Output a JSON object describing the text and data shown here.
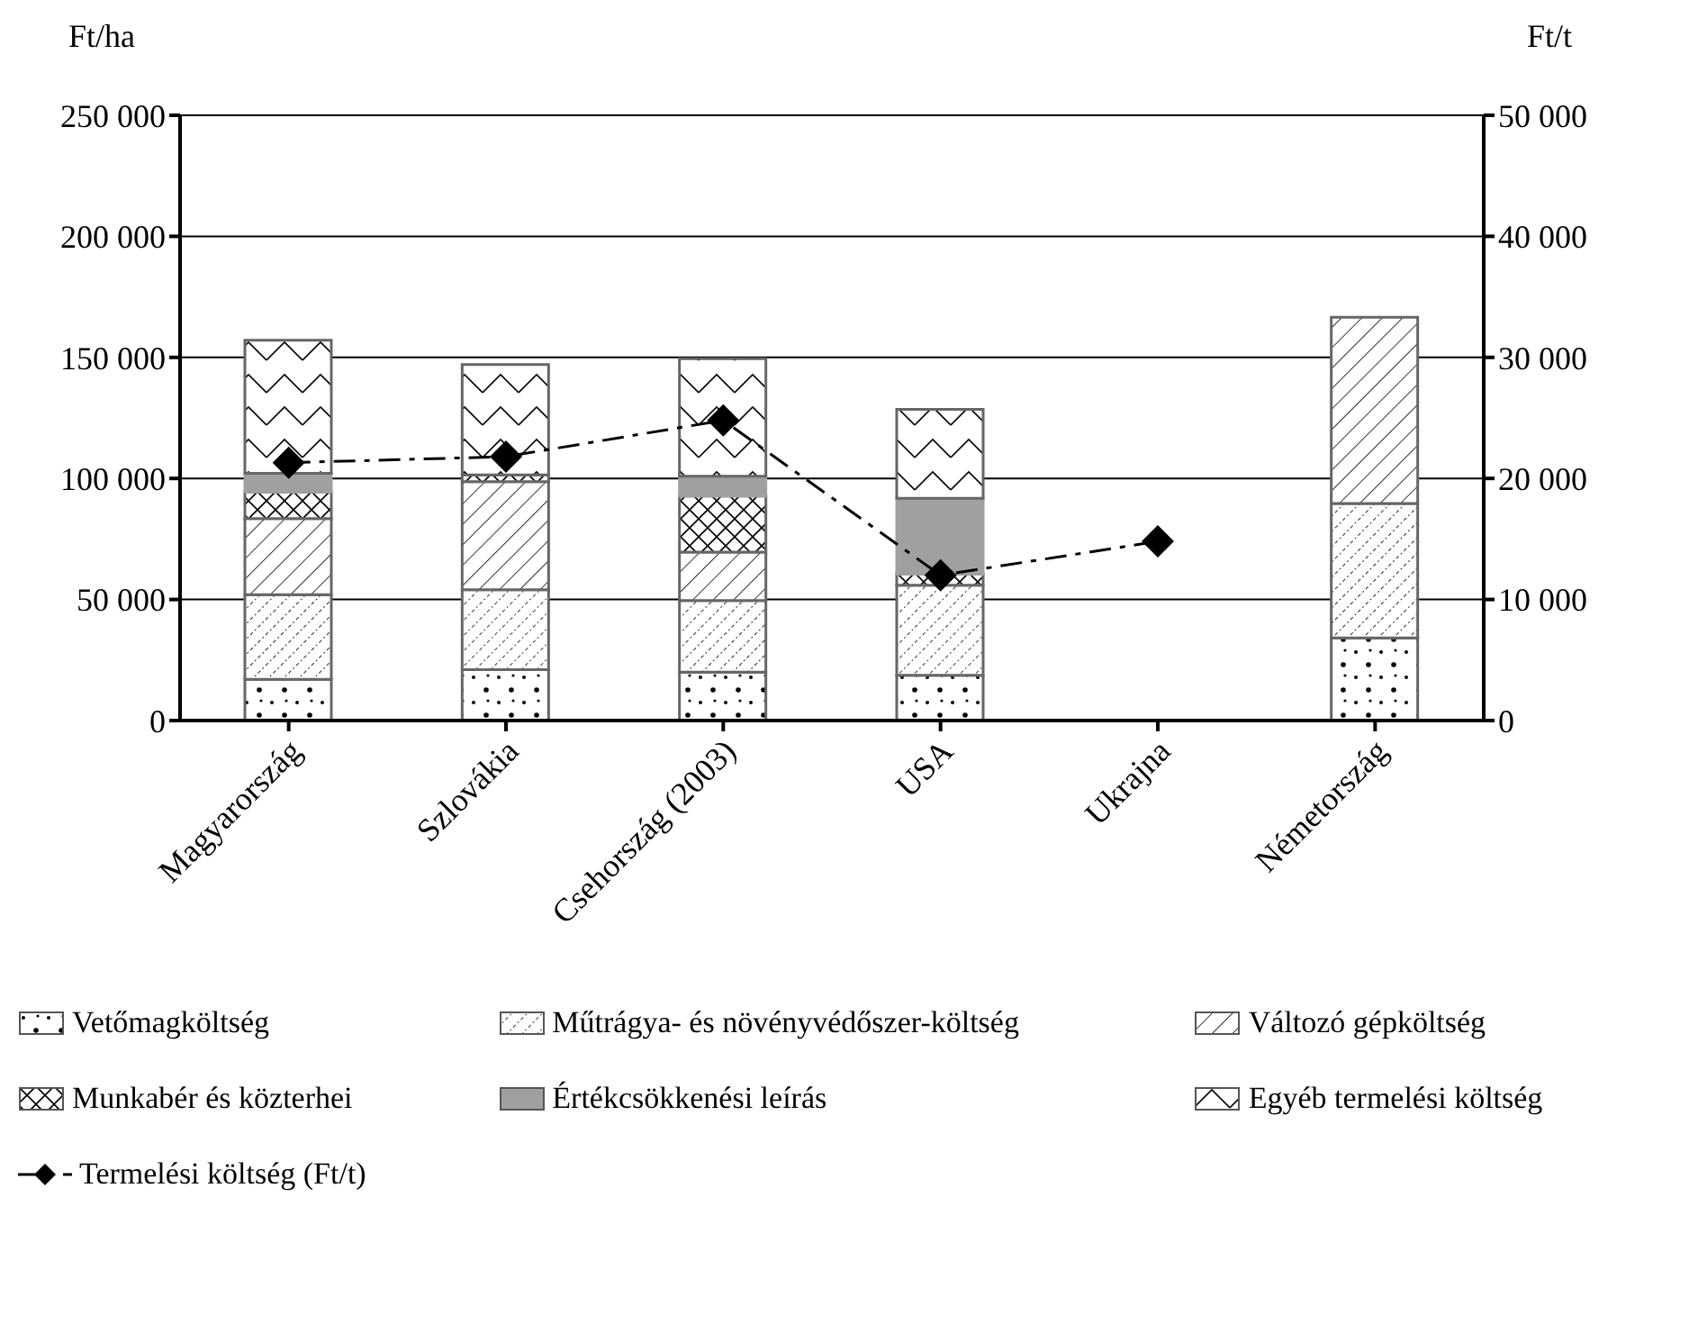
{
  "chart_data": {
    "type": "bar",
    "stacked": true,
    "ylabel": "Ft/ha",
    "y2label": "Ft/t",
    "categories": [
      "Magyarország",
      "Szlovákia",
      "Csehország (2003)",
      "USA",
      "Ukrajna",
      "Németország"
    ],
    "series": [
      {
        "name": "Vetőmagköltség",
        "color": "#666666",
        "values": [
          17000,
          21000,
          20000,
          18700,
          null,
          34100
        ]
      },
      {
        "name": "Műtrágya- és növényvédőszer-költség",
        "color": "#666666",
        "values": [
          35000,
          33000,
          29600,
          37200,
          null,
          55600
        ]
      },
      {
        "name": "Változó gépköltség",
        "color": "#666666",
        "values": [
          31400,
          44700,
          20000,
          null,
          null,
          76900
        ]
      },
      {
        "name": "Munkabér és közterhei",
        "color": "#666666",
        "values": [
          11000,
          2800,
          23100,
          4600,
          null,
          null
        ]
      },
      {
        "name": "Értékcsökkenési leírás",
        "color": "#a0a0a0",
        "values": [
          7700,
          null,
          8200,
          31300,
          null,
          null
        ]
      },
      {
        "name": "Egyéb termelési költség",
        "color": "#666666",
        "values": [
          55000,
          45500,
          48600,
          36700,
          null,
          null
        ]
      },
      {
        "name": "Termelési költség (Ft/t)",
        "type": "line",
        "axis": "y2",
        "color": "#000000",
        "marker": "diamond",
        "line_style": "dashed",
        "values": [
          21300,
          21800,
          24800,
          12000,
          14800,
          null
        ]
      }
    ],
    "ylim": [
      0,
      250000
    ],
    "yticks": [
      {
        "value": 0,
        "label": "0"
      },
      {
        "value": 50000,
        "label": "50 000"
      },
      {
        "value": 100000,
        "label": "100 000"
      },
      {
        "value": 150000,
        "label": "150 000"
      },
      {
        "value": 200000,
        "label": "200 000"
      },
      {
        "value": 250000,
        "label": "250 000"
      }
    ],
    "y2lim": [
      0,
      50000
    ],
    "y2ticks": [
      {
        "value": 0,
        "label": "0"
      },
      {
        "value": 10000,
        "label": "10 000"
      },
      {
        "value": 20000,
        "label": "20 000"
      },
      {
        "value": 30000,
        "label": "30 000"
      },
      {
        "value": 40000,
        "label": "40 000"
      },
      {
        "value": 50000,
        "label": "50 000"
      }
    ],
    "grid": "y",
    "legend": "bottom"
  }
}
